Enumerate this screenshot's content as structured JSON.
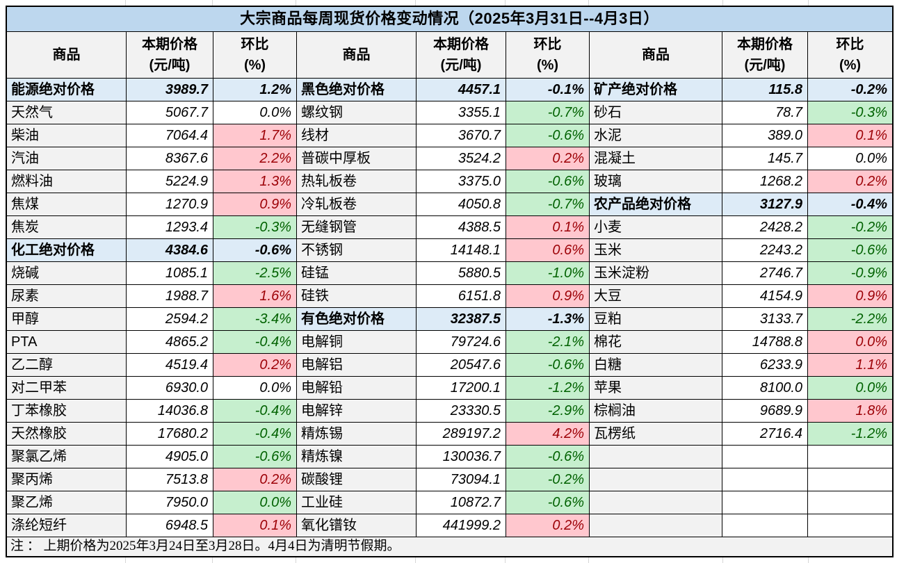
{
  "chart_data": {
    "type": "table",
    "title": "大宗商品每周现货价格变动情况（2025年3月31日--4月3日）",
    "column_headers": [
      "商品",
      "本期价格\n(元/吨)",
      "环比\n(%)"
    ],
    "legend": {
      "up_style": "pink background, dark red text",
      "down_style": "green background, dark green text",
      "section_style": "light blue background, bold"
    },
    "groups": [
      {
        "rows": [
          {
            "name": "能源绝对价格",
            "price": "3989.7",
            "pct": "1.2%",
            "style": "section"
          },
          {
            "name": "天然气",
            "price": "5067.7",
            "pct": "0.0%",
            "style": "flat"
          },
          {
            "name": "柴油",
            "price": "7064.4",
            "pct": "1.7%",
            "style": "up"
          },
          {
            "name": "汽油",
            "price": "8367.6",
            "pct": "2.2%",
            "style": "up"
          },
          {
            "name": "燃料油",
            "price": "5224.9",
            "pct": "1.3%",
            "style": "up"
          },
          {
            "name": "焦煤",
            "price": "1270.9",
            "pct": "0.9%",
            "style": "up"
          },
          {
            "name": "焦炭",
            "price": "1293.4",
            "pct": "-0.3%",
            "style": "down"
          },
          {
            "name": "化工绝对价格",
            "price": "4384.6",
            "pct": "-0.6%",
            "style": "section"
          },
          {
            "name": "烧碱",
            "price": "1085.1",
            "pct": "-2.5%",
            "style": "down"
          },
          {
            "name": "尿素",
            "price": "1988.7",
            "pct": "1.6%",
            "style": "up"
          },
          {
            "name": "甲醇",
            "price": "2594.2",
            "pct": "-3.4%",
            "style": "down"
          },
          {
            "name": "PTA",
            "price": "4865.2",
            "pct": "-0.4%",
            "style": "down"
          },
          {
            "name": "乙二醇",
            "price": "4519.4",
            "pct": "0.2%",
            "style": "up"
          },
          {
            "name": "对二甲苯",
            "price": "6930.0",
            "pct": "0.0%",
            "style": "flat"
          },
          {
            "name": "丁苯橡胶",
            "price": "14036.8",
            "pct": "-0.4%",
            "style": "down"
          },
          {
            "name": "天然橡胶",
            "price": "17680.2",
            "pct": "-0.4%",
            "style": "down"
          },
          {
            "name": "聚氯乙烯",
            "price": "4905.0",
            "pct": "-0.6%",
            "style": "down"
          },
          {
            "name": "聚丙烯",
            "price": "7513.8",
            "pct": "0.2%",
            "style": "up"
          },
          {
            "name": "聚乙烯",
            "price": "7950.0",
            "pct": "0.0%",
            "style": "down"
          },
          {
            "name": "涤纶短纤",
            "price": "6948.5",
            "pct": "0.1%",
            "style": "up"
          }
        ]
      },
      {
        "rows": [
          {
            "name": "黑色绝对价格",
            "price": "4457.1",
            "pct": "-0.1%",
            "style": "section"
          },
          {
            "name": "螺纹钢",
            "price": "3355.1",
            "pct": "-0.7%",
            "style": "down"
          },
          {
            "name": "线材",
            "price": "3670.7",
            "pct": "-0.6%",
            "style": "down"
          },
          {
            "name": "普碳中厚板",
            "price": "3524.2",
            "pct": "0.2%",
            "style": "up"
          },
          {
            "name": "热轧板卷",
            "price": "3375.0",
            "pct": "-0.6%",
            "style": "down"
          },
          {
            "name": "冷轧板卷",
            "price": "4050.8",
            "pct": "-0.7%",
            "style": "down"
          },
          {
            "name": "无缝钢管",
            "price": "4388.5",
            "pct": "0.1%",
            "style": "up"
          },
          {
            "name": "不锈钢",
            "price": "14148.1",
            "pct": "0.6%",
            "style": "up"
          },
          {
            "name": "硅锰",
            "price": "5880.5",
            "pct": "-1.0%",
            "style": "down"
          },
          {
            "name": "硅铁",
            "price": "6151.8",
            "pct": "0.9%",
            "style": "up"
          },
          {
            "name": "有色绝对价格",
            "price": "32387.5",
            "pct": "-1.3%",
            "style": "section"
          },
          {
            "name": "电解铜",
            "price": "79724.6",
            "pct": "-2.1%",
            "style": "down"
          },
          {
            "name": "电解铝",
            "price": "20547.6",
            "pct": "-0.6%",
            "style": "down"
          },
          {
            "name": "电解铅",
            "price": "17200.1",
            "pct": "-1.2%",
            "style": "down"
          },
          {
            "name": "电解锌",
            "price": "23330.5",
            "pct": "-2.9%",
            "style": "down"
          },
          {
            "name": "精炼锡",
            "price": "289197.2",
            "pct": "4.2%",
            "style": "up"
          },
          {
            "name": "精炼镍",
            "price": "130036.7",
            "pct": "-0.6%",
            "style": "down"
          },
          {
            "name": "碳酸锂",
            "price": "73094.1",
            "pct": "-0.2%",
            "style": "down"
          },
          {
            "name": "工业硅",
            "price": "10872.7",
            "pct": "-0.6%",
            "style": "down"
          },
          {
            "name": "氧化镨钕",
            "price": "441999.2",
            "pct": "0.2%",
            "style": "up"
          }
        ]
      },
      {
        "rows": [
          {
            "name": "矿产绝对价格",
            "price": "115.8",
            "pct": "-0.2%",
            "style": "section"
          },
          {
            "name": "砂石",
            "price": "78.7",
            "pct": "-0.3%",
            "style": "down"
          },
          {
            "name": "水泥",
            "price": "389.0",
            "pct": "0.1%",
            "style": "up"
          },
          {
            "name": "混凝土",
            "price": "145.7",
            "pct": "0.0%",
            "style": "flat"
          },
          {
            "name": "玻璃",
            "price": "1268.2",
            "pct": "0.2%",
            "style": "up"
          },
          {
            "name": "农产品绝对价格",
            "price": "3127.9",
            "pct": "-0.4%",
            "style": "section"
          },
          {
            "name": "小麦",
            "price": "2428.2",
            "pct": "-0.2%",
            "style": "down"
          },
          {
            "name": "玉米",
            "price": "2243.2",
            "pct": "-0.6%",
            "style": "down"
          },
          {
            "name": "玉米淀粉",
            "price": "2746.7",
            "pct": "-0.9%",
            "style": "down"
          },
          {
            "name": "大豆",
            "price": "4154.9",
            "pct": "0.9%",
            "style": "up"
          },
          {
            "name": "豆粕",
            "price": "3133.7",
            "pct": "-2.2%",
            "style": "down"
          },
          {
            "name": "棉花",
            "price": "14788.8",
            "pct": "0.0%",
            "style": "up"
          },
          {
            "name": "白糖",
            "price": "6233.9",
            "pct": "1.1%",
            "style": "up"
          },
          {
            "name": "苹果",
            "price": "8100.0",
            "pct": "0.0%",
            "style": "down"
          },
          {
            "name": "棕榈油",
            "price": "9689.9",
            "pct": "1.8%",
            "style": "up"
          },
          {
            "name": "瓦楞纸",
            "price": "2716.4",
            "pct": "-1.2%",
            "style": "down"
          },
          {
            "name": "",
            "price": "",
            "pct": "",
            "style": "empty"
          },
          {
            "name": "",
            "price": "",
            "pct": "",
            "style": "empty"
          },
          {
            "name": "",
            "price": "",
            "pct": "",
            "style": "empty"
          },
          {
            "name": "",
            "price": "",
            "pct": "",
            "style": "empty"
          }
        ]
      }
    ],
    "note": "注 ： 上期价格为2025年3月24日至3月28日。4月4日为清明节假期。"
  },
  "colors": {
    "title_bg": "#BDD7EE",
    "section_bg": "#DDEBF7",
    "label_bg": "#F2F2F2",
    "increase_bg": "#FFC7CE",
    "increase_text": "#9C0006",
    "decrease_bg": "#C6EFCE",
    "decrease_text": "#006100"
  }
}
